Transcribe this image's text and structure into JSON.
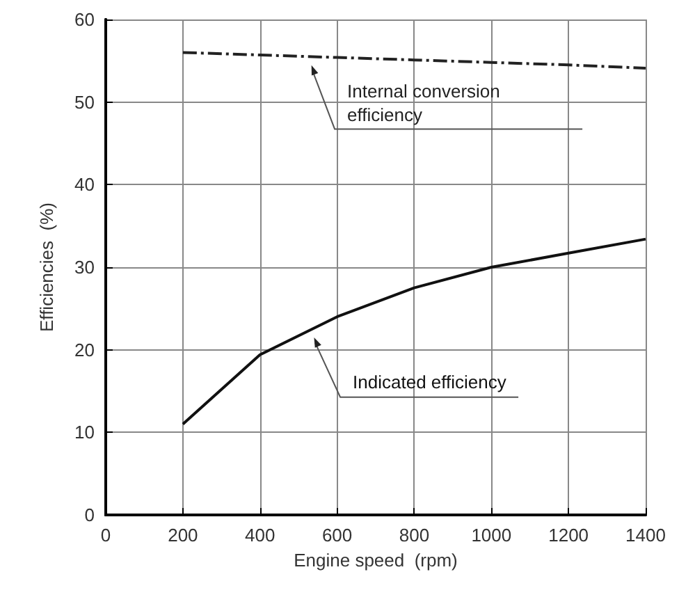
{
  "chart_data": {
    "type": "line",
    "xlabel": "Engine speed  (rpm)",
    "ylabel": "Efficiencies  (%)",
    "x": [
      200,
      400,
      600,
      800,
      1000,
      1200,
      1400
    ],
    "series": [
      {
        "name": "Internal conversion efficiency",
        "color": "#222222",
        "line_style": "dashed",
        "values": [
          56,
          55.7,
          55.4,
          55.1,
          54.8,
          54.5,
          54.1
        ]
      },
      {
        "name": "Indicated efficiency",
        "color": "#111111",
        "line_style": "solid",
        "values": [
          11,
          19.4,
          24,
          27.5,
          30,
          31.7,
          33.4
        ]
      }
    ],
    "xlim": [
      0,
      1400
    ],
    "xticks": [
      0,
      200,
      400,
      600,
      800,
      1000,
      1200,
      1400
    ],
    "ylim": [
      0,
      60
    ],
    "yticks": [
      0,
      10,
      20,
      30,
      40,
      50,
      60
    ],
    "grid": true,
    "legend": false,
    "marker": "none"
  }
}
